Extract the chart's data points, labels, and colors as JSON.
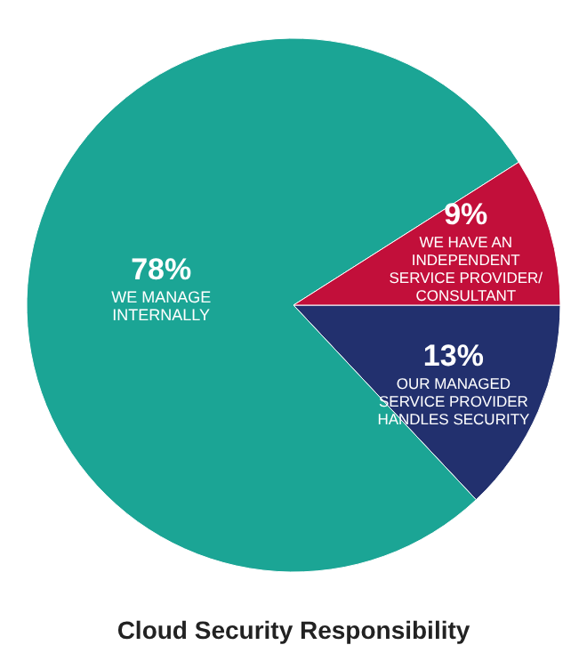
{
  "chart_data": {
    "type": "pie",
    "title": "Cloud Security Responsibility",
    "categories": [
      "OUR MANAGED SERVICE PROVIDER HANDLES SECURITY",
      "WE MANAGE INTERNALLY",
      "WE HAVE AN INDEPENDENT SERVICE PROVIDER/ CONSULTANT"
    ],
    "values": [
      13,
      78,
      9
    ],
    "colors": [
      "#22306e",
      "#1ba595",
      "#c20f3a"
    ],
    "value_labels": [
      "13%",
      "78%",
      "9%"
    ],
    "legend": false
  }
}
